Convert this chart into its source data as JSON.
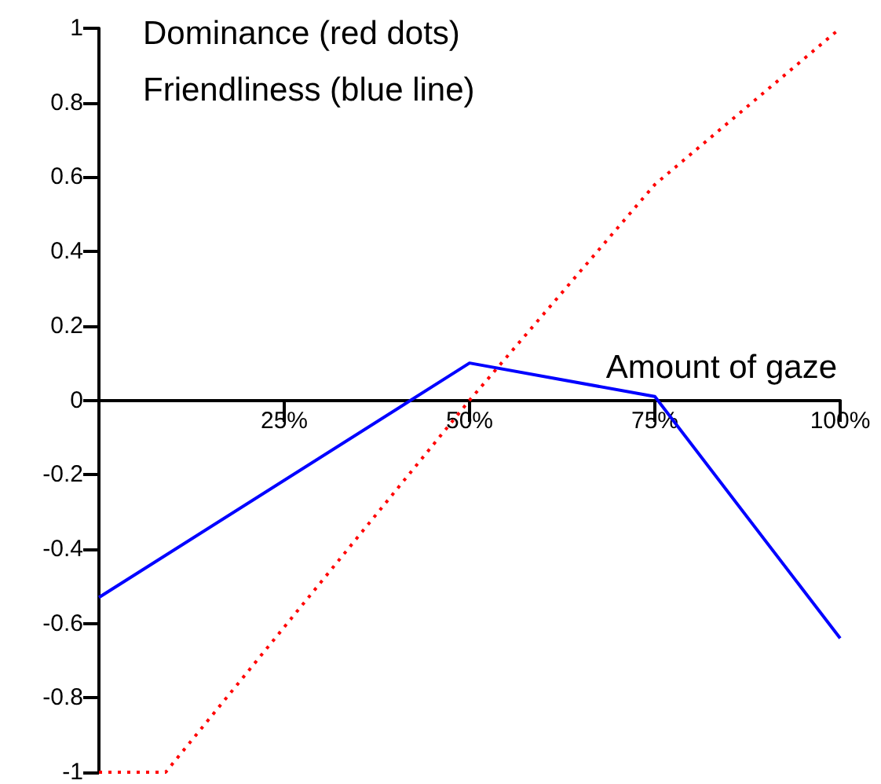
{
  "chart_data": {
    "type": "line",
    "title": "Dominance (red dots)",
    "subtitle": "Friendliness (blue line)",
    "xlabel": "Amount of gaze",
    "xlim": [
      0,
      100
    ],
    "xticks": [
      {
        "value": 25,
        "label": "25%"
      },
      {
        "value": 50,
        "label": "50%"
      },
      {
        "value": 75,
        "label": "75%"
      },
      {
        "value": 100,
        "label": "100%"
      }
    ],
    "ylim": [
      -1,
      1
    ],
    "yticks": [
      -1,
      -0.8,
      -0.6,
      -0.4,
      -0.2,
      0,
      0.2,
      0.4,
      0.6,
      0.8,
      1
    ],
    "grid": false,
    "marker": "none",
    "series": [
      {
        "color": "#ff0000",
        "line_style": "dotted",
        "x": [
          0,
          9,
          50,
          75,
          100
        ],
        "values": [
          -1,
          -1,
          0,
          0.58,
          1
        ]
      },
      {
        "color": "#0000ff",
        "line_style": "solid",
        "x": [
          0,
          50,
          75,
          100
        ],
        "values": [
          -0.53,
          0.1,
          0.01,
          -0.64
        ]
      }
    ]
  }
}
